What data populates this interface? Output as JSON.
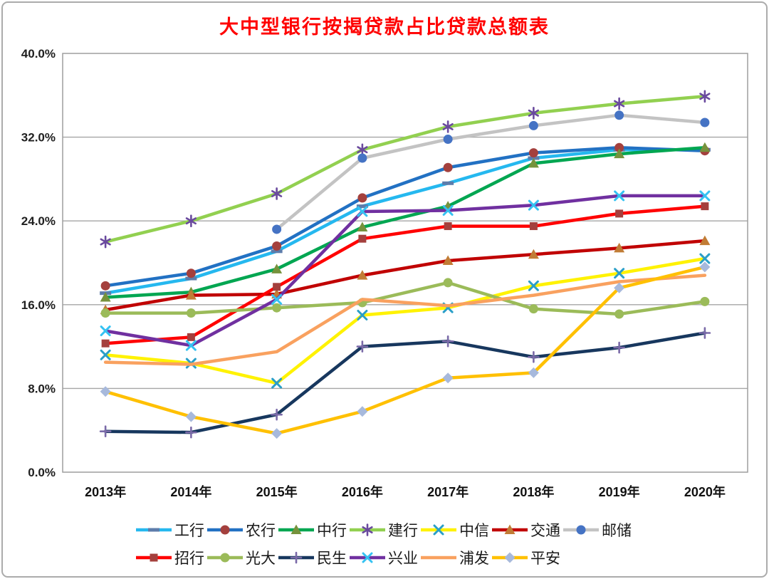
{
  "window": {
    "background_color": "#ffffff",
    "border_color": "#ababab"
  },
  "chart_data": {
    "type": "line",
    "title": "大中型银行按揭贷款占比贷款总额表",
    "title_color": "#ff0000",
    "xlabel": "",
    "ylabel": "",
    "categories": [
      "2013年",
      "2014年",
      "2015年",
      "2016年",
      "2017年",
      "2018年",
      "2019年",
      "2020年"
    ],
    "ylim": [
      0,
      40
    ],
    "yticks": [
      0,
      8,
      16,
      24,
      32,
      40
    ],
    "ytick_labels": [
      "0.0%",
      "8.0%",
      "16.0%",
      "24.0%",
      "32.0%",
      "40.0%"
    ],
    "grid": true,
    "gridline_color": "#a6a6a6",
    "legend_position": "bottom",
    "legend_rows": [
      7,
      6
    ],
    "series": [
      {
        "id": "icbc",
        "name": "工行",
        "line_color": "#25b8ef",
        "marker": "dash",
        "marker_color": "#5d7cab",
        "values": [
          17.1,
          18.5,
          21.1,
          25.4,
          27.6,
          30.0,
          30.8,
          30.8
        ]
      },
      {
        "id": "abc",
        "name": "农行",
        "line_color": "#2271c3",
        "marker": "circle",
        "marker_color": "#a4403d",
        "values": [
          17.8,
          19.0,
          21.6,
          26.2,
          29.1,
          30.5,
          31.0,
          30.7
        ]
      },
      {
        "id": "boc",
        "name": "中行",
        "line_color": "#00a651",
        "marker": "triangle",
        "marker_color": "#76923c",
        "values": [
          16.7,
          17.2,
          19.4,
          23.4,
          25.4,
          29.5,
          30.4,
          31.0
        ]
      },
      {
        "id": "ccb",
        "name": "建行",
        "line_color": "#92d050",
        "marker": "asterisk",
        "marker_color": "#6a4a9e",
        "values": [
          22.0,
          24.0,
          26.6,
          30.8,
          33.0,
          34.3,
          35.2,
          35.9
        ]
      },
      {
        "id": "citic",
        "name": "中信",
        "line_color": "#fff200",
        "marker": "x",
        "marker_color": "#2a9fc8",
        "values": [
          11.2,
          10.4,
          8.5,
          15.0,
          15.7,
          17.8,
          19.0,
          20.4
        ]
      },
      {
        "id": "bocom",
        "name": "交通",
        "line_color": "#c00000",
        "marker": "triangle",
        "marker_color": "#c17c35",
        "values": [
          15.5,
          16.9,
          17.0,
          18.8,
          20.2,
          20.8,
          21.4,
          22.1
        ]
      },
      {
        "id": "psbc",
        "name": "邮储",
        "line_color": "#c3c3c3",
        "marker": "circle",
        "marker_color": "#4573c4",
        "values": [
          null,
          null,
          23.2,
          30.0,
          31.8,
          33.1,
          34.1,
          33.4
        ]
      },
      {
        "id": "cmb",
        "name": "招行",
        "line_color": "#ff0000",
        "marker": "square",
        "marker_color": "#a4403d",
        "values": [
          12.3,
          12.9,
          17.7,
          22.3,
          23.5,
          23.5,
          24.7,
          25.4
        ]
      },
      {
        "id": "ceb",
        "name": "光大",
        "line_color": "#9bbb59",
        "marker": "circle",
        "marker_color": "#9bbb59",
        "values": [
          15.2,
          15.2,
          15.7,
          16.2,
          18.1,
          15.6,
          15.1,
          16.3
        ]
      },
      {
        "id": "minsheng",
        "name": "民生",
        "line_color": "#17375e",
        "marker": "plus",
        "marker_color": "#7a6aa8",
        "values": [
          3.9,
          3.8,
          5.5,
          12.0,
          12.5,
          11.0,
          11.9,
          13.3
        ]
      },
      {
        "id": "cib",
        "name": "兴业",
        "line_color": "#7030a0",
        "marker": "x",
        "marker_color": "#35c2f2",
        "values": [
          13.5,
          12.1,
          16.5,
          24.9,
          25.0,
          25.5,
          26.4,
          26.4
        ]
      },
      {
        "id": "spdb",
        "name": "浦发",
        "line_color": "#f9a15f",
        "marker": "none",
        "marker_color": "#f9a15f",
        "values": [
          10.5,
          10.3,
          11.5,
          16.5,
          15.9,
          16.9,
          18.2,
          18.8
        ]
      },
      {
        "id": "pingan",
        "name": "平安",
        "line_color": "#ffc000",
        "marker": "diamond",
        "marker_color": "#a7b9dc",
        "values": [
          7.7,
          5.3,
          3.7,
          5.8,
          9.0,
          9.5,
          17.6,
          19.6
        ]
      }
    ]
  }
}
